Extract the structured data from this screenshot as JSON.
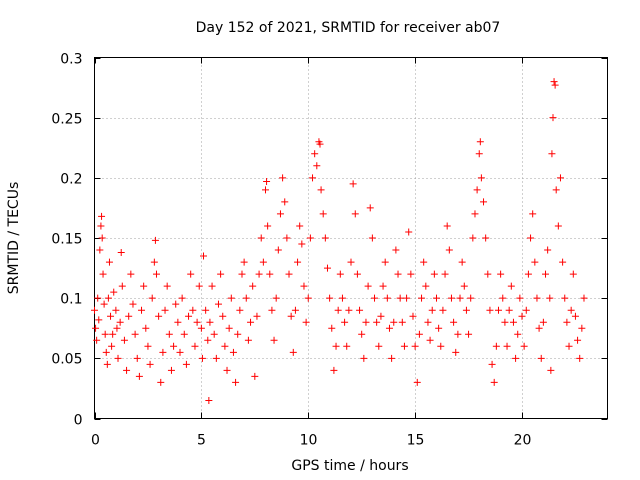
{
  "chart_data": {
    "type": "scatter",
    "title": "Day 152 of 2021, SRMTID for receiver ab07",
    "xlabel": "GPS time / hours",
    "ylabel": "SRMTID / TECUs",
    "xlim": [
      0,
      24
    ],
    "ylim": [
      0,
      0.3
    ],
    "x_ticks": [
      0,
      5,
      10,
      15,
      20
    ],
    "y_ticks": [
      0,
      0.05,
      0.1,
      0.15,
      0.2,
      0.25,
      0.3
    ],
    "x_tick_labels": [
      "0",
      "5",
      "10",
      "15",
      "20"
    ],
    "y_tick_labels": [
      "0",
      "0.05",
      "0.1",
      "0.15",
      "0.2",
      "0.25",
      "0.3"
    ],
    "grid": true,
    "marker": "+",
    "color": "#ff0000",
    "series": [
      {
        "name": "SRMTID",
        "points": [
          [
            0.0,
            0.09
          ],
          [
            0.05,
            0.075
          ],
          [
            0.1,
            0.065
          ],
          [
            0.15,
            0.1
          ],
          [
            0.2,
            0.082
          ],
          [
            0.25,
            0.14
          ],
          [
            0.3,
            0.16
          ],
          [
            0.33,
            0.168
          ],
          [
            0.36,
            0.15
          ],
          [
            0.4,
            0.12
          ],
          [
            0.45,
            0.095
          ],
          [
            0.5,
            0.07
          ],
          [
            0.55,
            0.055
          ],
          [
            0.6,
            0.045
          ],
          [
            0.65,
            0.1
          ],
          [
            0.7,
            0.13
          ],
          [
            0.75,
            0.085
          ],
          [
            0.8,
            0.06
          ],
          [
            0.85,
            0.07
          ],
          [
            0.9,
            0.105
          ],
          [
            1.0,
            0.09
          ],
          [
            1.05,
            0.075
          ],
          [
            1.1,
            0.05
          ],
          [
            1.2,
            0.08
          ],
          [
            1.25,
            0.138
          ],
          [
            1.3,
            0.11
          ],
          [
            1.4,
            0.065
          ],
          [
            1.5,
            0.04
          ],
          [
            1.6,
            0.085
          ],
          [
            1.7,
            0.12
          ],
          [
            1.8,
            0.095
          ],
          [
            1.9,
            0.07
          ],
          [
            2.0,
            0.05
          ],
          [
            2.1,
            0.035
          ],
          [
            2.2,
            0.09
          ],
          [
            2.3,
            0.11
          ],
          [
            2.4,
            0.075
          ],
          [
            2.5,
            0.06
          ],
          [
            2.6,
            0.045
          ],
          [
            2.7,
            0.1
          ],
          [
            2.8,
            0.13
          ],
          [
            2.85,
            0.148
          ],
          [
            2.9,
            0.12
          ],
          [
            3.0,
            0.085
          ],
          [
            3.1,
            0.03
          ],
          [
            3.2,
            0.055
          ],
          [
            3.3,
            0.09
          ],
          [
            3.4,
            0.11
          ],
          [
            3.5,
            0.07
          ],
          [
            3.6,
            0.04
          ],
          [
            3.7,
            0.06
          ],
          [
            3.8,
            0.095
          ],
          [
            3.9,
            0.08
          ],
          [
            4.0,
            0.055
          ],
          [
            4.1,
            0.1
          ],
          [
            4.2,
            0.07
          ],
          [
            4.3,
            0.045
          ],
          [
            4.4,
            0.085
          ],
          [
            4.5,
            0.12
          ],
          [
            4.6,
            0.09
          ],
          [
            4.7,
            0.06
          ],
          [
            4.8,
            0.08
          ],
          [
            4.9,
            0.11
          ],
          [
            5.0,
            0.075
          ],
          [
            5.05,
            0.05
          ],
          [
            5.1,
            0.135
          ],
          [
            5.2,
            0.09
          ],
          [
            5.3,
            0.065
          ],
          [
            5.35,
            0.015
          ],
          [
            5.4,
            0.08
          ],
          [
            5.5,
            0.11
          ],
          [
            5.6,
            0.07
          ],
          [
            5.7,
            0.05
          ],
          [
            5.8,
            0.095
          ],
          [
            5.9,
            0.12
          ],
          [
            6.0,
            0.085
          ],
          [
            6.1,
            0.06
          ],
          [
            6.2,
            0.04
          ],
          [
            6.3,
            0.075
          ],
          [
            6.4,
            0.1
          ],
          [
            6.5,
            0.055
          ],
          [
            6.6,
            0.03
          ],
          [
            6.7,
            0.07
          ],
          [
            6.8,
            0.09
          ],
          [
            6.9,
            0.12
          ],
          [
            7.0,
            0.13
          ],
          [
            7.1,
            0.1
          ],
          [
            7.2,
            0.065
          ],
          [
            7.3,
            0.08
          ],
          [
            7.4,
            0.11
          ],
          [
            7.5,
            0.035
          ],
          [
            7.6,
            0.085
          ],
          [
            7.7,
            0.12
          ],
          [
            7.8,
            0.15
          ],
          [
            7.9,
            0.13
          ],
          [
            8.0,
            0.19
          ],
          [
            8.05,
            0.197
          ],
          [
            8.1,
            0.16
          ],
          [
            8.2,
            0.12
          ],
          [
            8.3,
            0.09
          ],
          [
            8.4,
            0.065
          ],
          [
            8.5,
            0.1
          ],
          [
            8.6,
            0.14
          ],
          [
            8.7,
            0.17
          ],
          [
            8.8,
            0.2
          ],
          [
            8.9,
            0.18
          ],
          [
            9.0,
            0.15
          ],
          [
            9.1,
            0.12
          ],
          [
            9.2,
            0.085
          ],
          [
            9.3,
            0.055
          ],
          [
            9.4,
            0.09
          ],
          [
            9.5,
            0.13
          ],
          [
            9.6,
            0.16
          ],
          [
            9.7,
            0.145
          ],
          [
            9.8,
            0.11
          ],
          [
            9.9,
            0.08
          ],
          [
            10.0,
            0.1
          ],
          [
            10.1,
            0.15
          ],
          [
            10.2,
            0.2
          ],
          [
            10.3,
            0.22
          ],
          [
            10.4,
            0.21
          ],
          [
            10.5,
            0.23
          ],
          [
            10.55,
            0.228
          ],
          [
            10.6,
            0.19
          ],
          [
            10.7,
            0.17
          ],
          [
            10.8,
            0.15
          ],
          [
            10.9,
            0.125
          ],
          [
            11.0,
            0.1
          ],
          [
            11.1,
            0.075
          ],
          [
            11.2,
            0.04
          ],
          [
            11.3,
            0.06
          ],
          [
            11.4,
            0.09
          ],
          [
            11.5,
            0.12
          ],
          [
            11.6,
            0.1
          ],
          [
            11.7,
            0.08
          ],
          [
            11.8,
            0.06
          ],
          [
            11.9,
            0.09
          ],
          [
            12.0,
            0.13
          ],
          [
            12.1,
            0.195
          ],
          [
            12.2,
            0.17
          ],
          [
            12.3,
            0.12
          ],
          [
            12.4,
            0.09
          ],
          [
            12.5,
            0.07
          ],
          [
            12.6,
            0.05
          ],
          [
            12.7,
            0.08
          ],
          [
            12.8,
            0.11
          ],
          [
            12.9,
            0.175
          ],
          [
            13.0,
            0.15
          ],
          [
            13.1,
            0.1
          ],
          [
            13.2,
            0.08
          ],
          [
            13.3,
            0.06
          ],
          [
            13.4,
            0.085
          ],
          [
            13.5,
            0.11
          ],
          [
            13.6,
            0.13
          ],
          [
            13.7,
            0.1
          ],
          [
            13.8,
            0.075
          ],
          [
            13.9,
            0.05
          ],
          [
            14.0,
            0.08
          ],
          [
            14.1,
            0.14
          ],
          [
            14.2,
            0.12
          ],
          [
            14.3,
            0.1
          ],
          [
            14.4,
            0.08
          ],
          [
            14.5,
            0.06
          ],
          [
            14.6,
            0.1
          ],
          [
            14.7,
            0.155
          ],
          [
            14.8,
            0.12
          ],
          [
            14.9,
            0.085
          ],
          [
            15.0,
            0.06
          ],
          [
            15.1,
            0.03
          ],
          [
            15.2,
            0.07
          ],
          [
            15.3,
            0.1
          ],
          [
            15.4,
            0.13
          ],
          [
            15.5,
            0.11
          ],
          [
            15.6,
            0.08
          ],
          [
            15.7,
            0.065
          ],
          [
            15.8,
            0.09
          ],
          [
            15.9,
            0.12
          ],
          [
            16.0,
            0.1
          ],
          [
            16.1,
            0.075
          ],
          [
            16.2,
            0.06
          ],
          [
            16.3,
            0.09
          ],
          [
            16.4,
            0.12
          ],
          [
            16.5,
            0.16
          ],
          [
            16.6,
            0.14
          ],
          [
            16.7,
            0.1
          ],
          [
            16.8,
            0.08
          ],
          [
            16.9,
            0.055
          ],
          [
            17.0,
            0.07
          ],
          [
            17.1,
            0.1
          ],
          [
            17.2,
            0.13
          ],
          [
            17.3,
            0.11
          ],
          [
            17.4,
            0.09
          ],
          [
            17.5,
            0.07
          ],
          [
            17.6,
            0.1
          ],
          [
            17.7,
            0.15
          ],
          [
            17.8,
            0.17
          ],
          [
            17.9,
            0.19
          ],
          [
            18.0,
            0.22
          ],
          [
            18.05,
            0.23
          ],
          [
            18.1,
            0.2
          ],
          [
            18.2,
            0.18
          ],
          [
            18.3,
            0.15
          ],
          [
            18.4,
            0.12
          ],
          [
            18.5,
            0.09
          ],
          [
            18.6,
            0.045
          ],
          [
            18.7,
            0.03
          ],
          [
            18.8,
            0.06
          ],
          [
            18.9,
            0.09
          ],
          [
            19.0,
            0.12
          ],
          [
            19.1,
            0.1
          ],
          [
            19.2,
            0.08
          ],
          [
            19.3,
            0.06
          ],
          [
            19.4,
            0.09
          ],
          [
            19.5,
            0.11
          ],
          [
            19.6,
            0.08
          ],
          [
            19.7,
            0.05
          ],
          [
            19.8,
            0.07
          ],
          [
            19.9,
            0.1
          ],
          [
            20.0,
            0.085
          ],
          [
            20.1,
            0.06
          ],
          [
            20.2,
            0.09
          ],
          [
            20.3,
            0.12
          ],
          [
            20.4,
            0.15
          ],
          [
            20.5,
            0.17
          ],
          [
            20.6,
            0.13
          ],
          [
            20.7,
            0.1
          ],
          [
            20.8,
            0.075
          ],
          [
            20.9,
            0.05
          ],
          [
            21.0,
            0.08
          ],
          [
            21.1,
            0.12
          ],
          [
            21.2,
            0.14
          ],
          [
            21.3,
            0.1
          ],
          [
            21.35,
            0.04
          ],
          [
            21.4,
            0.22
          ],
          [
            21.45,
            0.25
          ],
          [
            21.5,
            0.28
          ],
          [
            21.55,
            0.277
          ],
          [
            21.6,
            0.19
          ],
          [
            21.7,
            0.16
          ],
          [
            21.8,
            0.2
          ],
          [
            21.9,
            0.13
          ],
          [
            22.0,
            0.1
          ],
          [
            22.1,
            0.08
          ],
          [
            22.2,
            0.06
          ],
          [
            22.3,
            0.09
          ],
          [
            22.4,
            0.12
          ],
          [
            22.5,
            0.085
          ],
          [
            22.6,
            0.065
          ],
          [
            22.7,
            0.05
          ],
          [
            22.8,
            0.075
          ],
          [
            22.9,
            0.1
          ]
        ]
      }
    ]
  }
}
